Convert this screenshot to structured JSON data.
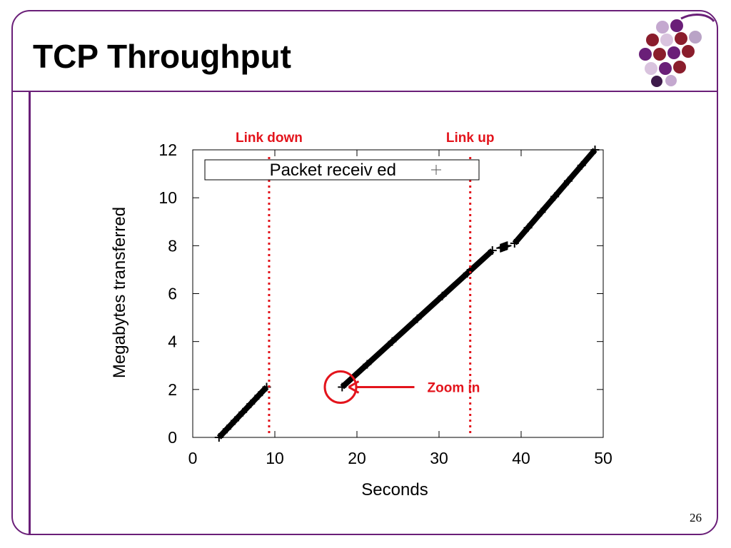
{
  "slide": {
    "title": "TCP Throughput",
    "page_number": "26",
    "frame_color": "#6a1f78",
    "logo_icon": "grapes-logo-icon"
  },
  "chart_data": {
    "type": "scatter",
    "xlabel": "Seconds",
    "ylabel": "Megabytes transferred",
    "xlim": [
      0,
      50
    ],
    "ylim": [
      0,
      12
    ],
    "xticks": [
      0,
      10,
      20,
      30,
      40,
      50
    ],
    "yticks": [
      0,
      2,
      4,
      6,
      8,
      10,
      12
    ],
    "grid": false,
    "legend": {
      "label": "Packet receiv ed",
      "marker": "+",
      "placement": "top"
    },
    "series": [
      {
        "name": "Packet receiv ed",
        "marker": "+",
        "color": "#000000",
        "segments": [
          [
            [
              3.2,
              0.0
            ],
            [
              9.0,
              2.1
            ]
          ],
          [
            [
              18.2,
              2.1
            ],
            [
              36.5,
              7.8
            ]
          ],
          [
            [
              37.5,
              7.9
            ],
            [
              38.3,
              8.0
            ]
          ],
          [
            [
              39.2,
              8.1
            ],
            [
              49.0,
              12.0
            ]
          ]
        ]
      }
    ],
    "annotations": [
      {
        "type": "vline",
        "x": 9.3,
        "label": "Link down",
        "color": "#e3141c"
      },
      {
        "type": "vline",
        "x": 33.8,
        "label": "Link up",
        "color": "#e3141c"
      },
      {
        "type": "circle",
        "x": 18.0,
        "y": 2.1,
        "color": "#e3141c"
      },
      {
        "type": "arrow",
        "from_x": 27.0,
        "to_x": 19.0,
        "y": 2.1,
        "label": "Zoom in",
        "color": "#e3141c"
      }
    ]
  }
}
